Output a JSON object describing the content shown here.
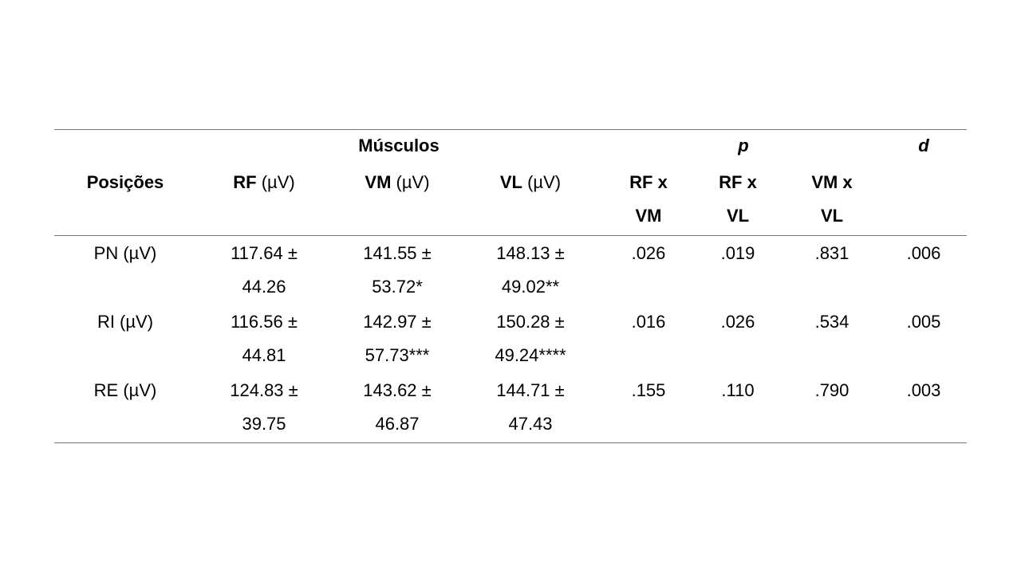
{
  "table": {
    "group_headers": [
      "Músculos",
      "p",
      "d"
    ],
    "columns": [
      {
        "name": "Posições"
      },
      {
        "name": "RF",
        "unit": "(µV)"
      },
      {
        "name": "VM",
        "unit": "(µV)"
      },
      {
        "name": "VL",
        "unit": "(µV)"
      },
      {
        "name": "RF x VM"
      },
      {
        "name": "RF x VL"
      },
      {
        "name": "VM x VL"
      }
    ],
    "rows": [
      [
        "PN (µV)",
        "117.64 ± 44.26",
        "141.55 ± 53.72*",
        "148.13 ± 49.02**",
        ".026",
        ".019",
        ".831",
        ".006"
      ],
      [
        "RI (µV)",
        "116.56 ± 44.81",
        "142.97 ± 57.73***",
        "150.28 ± 49.24****",
        ".016",
        ".026",
        ".534",
        ".005"
      ],
      [
        "RE (µV)",
        "124.83 ± 39.75",
        "143.62 ± 46.87",
        "144.71 ± 47.43",
        ".155",
        ".110",
        ".790",
        ".003"
      ]
    ]
  }
}
